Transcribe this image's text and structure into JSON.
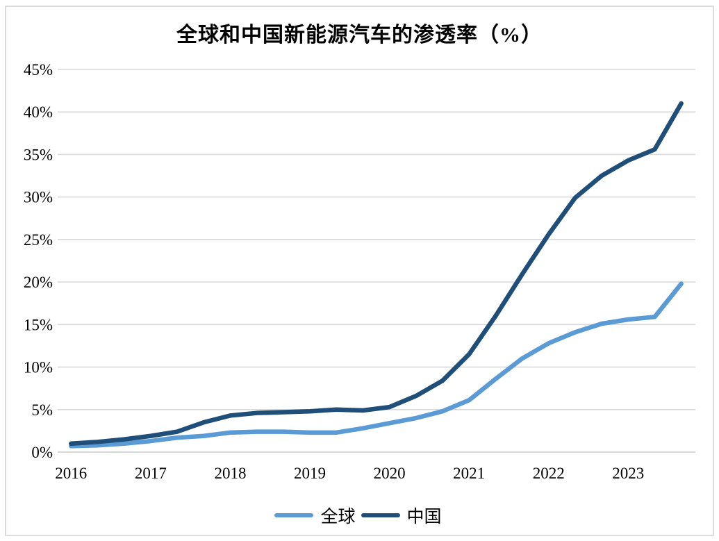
{
  "window": {
    "background": "#FFFFFF",
    "frame_border_color": "#DCDCDC"
  },
  "chart_data": {
    "type": "line",
    "title": "全球和中国新能源汽车的渗透率（%）",
    "x": [
      2016,
      2016.33,
      2016.67,
      2017,
      2017.33,
      2017.67,
      2018,
      2018.33,
      2018.67,
      2019,
      2019.33,
      2019.67,
      2020,
      2020.33,
      2020.67,
      2021,
      2021.33,
      2021.67,
      2022,
      2022.33,
      2022.67,
      2023,
      2023.33,
      2023.67
    ],
    "x_tick_labels": [
      "2016",
      "2017",
      "2018",
      "2019",
      "2020",
      "2021",
      "2022",
      "2023"
    ],
    "y_ticks": [
      "0%",
      "5%",
      "10%",
      "15%",
      "20%",
      "25%",
      "30%",
      "35%",
      "40%",
      "45%"
    ],
    "ylim": [
      0,
      45
    ],
    "grid": "horizontal",
    "gridline_color": "#D9D9D9",
    "axis_line_color": "#C9C9C9",
    "legend_position": "bottom",
    "series": [
      {
        "name": "全球",
        "color": "#5B9BD5",
        "values": [
          0.7,
          0.8,
          1.0,
          1.3,
          1.7,
          1.9,
          2.3,
          2.4,
          2.4,
          2.3,
          2.3,
          2.8,
          3.4,
          4.0,
          4.8,
          6.1,
          8.6,
          11.0,
          12.8,
          14.1,
          15.1,
          15.6,
          15.9,
          19.8
        ]
      },
      {
        "name": "中国",
        "color": "#1F4E79",
        "values": [
          1.0,
          1.2,
          1.5,
          1.9,
          2.4,
          3.5,
          4.3,
          4.6,
          4.7,
          4.8,
          5.0,
          4.9,
          5.3,
          6.6,
          8.4,
          11.5,
          16.0,
          20.9,
          25.6,
          29.9,
          32.5,
          34.3,
          35.6,
          41.0
        ]
      }
    ]
  }
}
